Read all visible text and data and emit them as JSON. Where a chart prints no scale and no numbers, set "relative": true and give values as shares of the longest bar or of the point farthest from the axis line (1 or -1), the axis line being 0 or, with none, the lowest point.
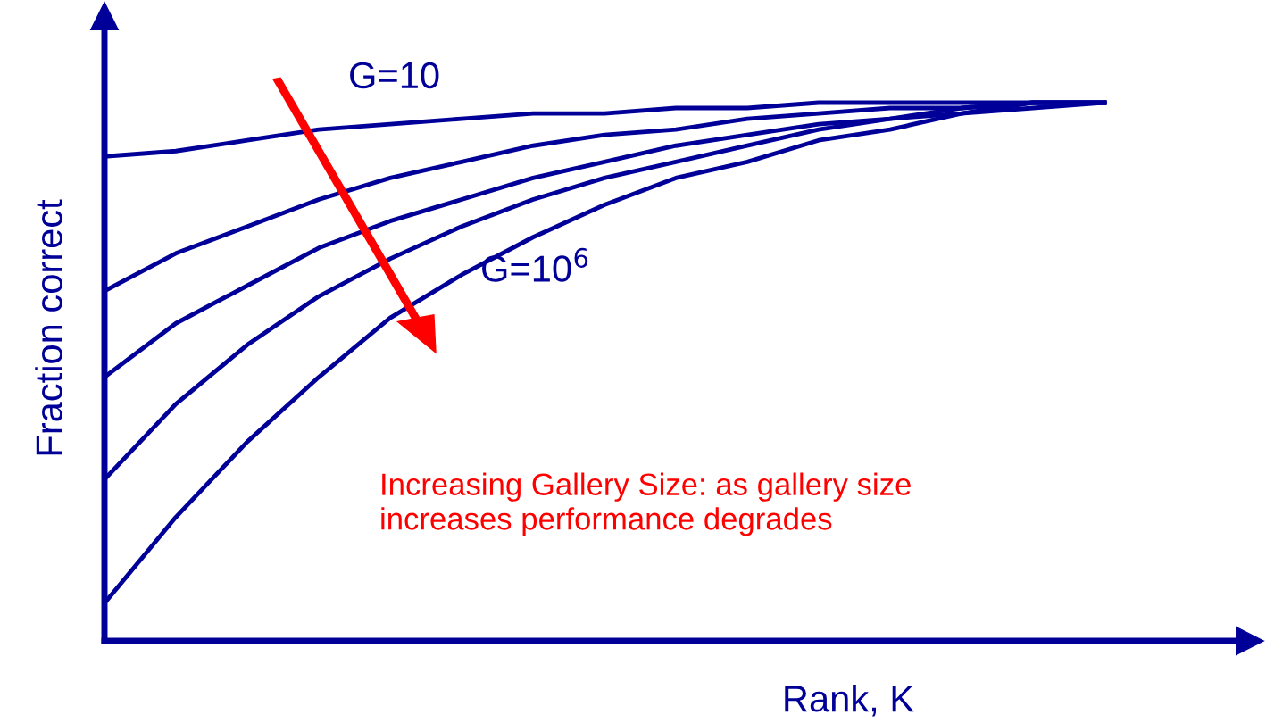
{
  "chart_data": {
    "type": "line",
    "relative": true,
    "xlabel": "Rank, K",
    "ylabel": "Fraction correct",
    "categories": [
      null,
      null,
      null,
      null,
      null,
      null,
      null,
      null,
      null,
      null,
      null,
      null,
      null,
      null,
      null
    ],
    "series": [
      {
        "color": "#000099",
        "values": [
          0.9,
          0.91,
          0.93,
          0.95,
          0.96,
          0.97,
          0.98,
          0.98,
          0.99,
          0.99,
          1.0,
          1.0,
          1.0,
          1.0,
          1.0
        ]
      },
      {
        "color": "#000099",
        "values": [
          0.65,
          0.72,
          0.77,
          0.82,
          0.86,
          0.89,
          0.92,
          0.94,
          0.95,
          0.97,
          0.98,
          0.99,
          0.99,
          1.0,
          1.0
        ]
      },
      {
        "color": "#000099",
        "values": [
          0.49,
          0.59,
          0.66,
          0.73,
          0.78,
          0.82,
          0.86,
          0.89,
          0.92,
          0.94,
          0.96,
          0.97,
          0.99,
          1.0,
          1.0
        ]
      },
      {
        "color": "#000099",
        "values": [
          0.3,
          0.44,
          0.55,
          0.64,
          0.71,
          0.77,
          0.82,
          0.86,
          0.89,
          0.92,
          0.95,
          0.97,
          0.98,
          1.0,
          1.0
        ]
      },
      {
        "color": "#000099",
        "values": [
          0.07,
          0.23,
          0.37,
          0.49,
          0.6,
          0.68,
          0.75,
          0.81,
          0.86,
          0.89,
          0.93,
          0.95,
          0.98,
          0.99,
          1.0
        ]
      }
    ],
    "annotations": [
      "G=10",
      "G=10$^{6}$",
      "Increasing Gallery Size: as gallery size\nincreases performance degrades"
    ],
    "marker": "none",
    "line_style": "solid",
    "legend": false
  }
}
